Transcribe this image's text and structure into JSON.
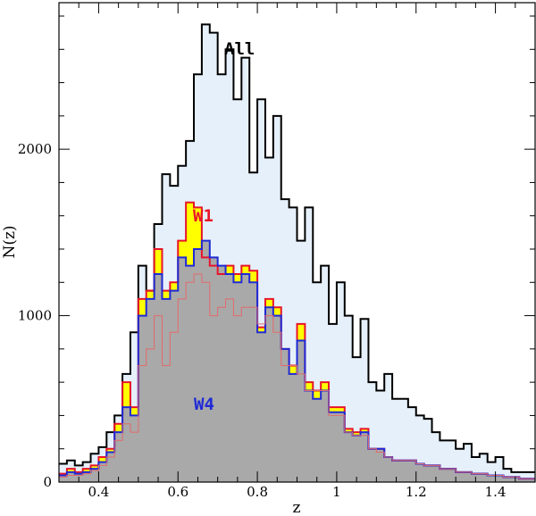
{
  "chart_data": {
    "type": "histogram",
    "xlabel": "z",
    "ylabel": "N(z)",
    "xlim": [
      0.3,
      1.5
    ],
    "ylim": [
      0,
      2800
    ],
    "x_ticks": [
      0.4,
      0.6,
      0.8,
      1,
      1.2,
      1.4
    ],
    "y_ticks": [
      0,
      1000,
      2000
    ],
    "bin_start": 0.3,
    "bin_width": 0.02,
    "grid": false,
    "annotations": [
      {
        "text": "All",
        "color": "#000000"
      },
      {
        "text": "W1",
        "color": "#e8142a"
      },
      {
        "text": "W4",
        "color": "#1f2ad6"
      }
    ],
    "series": [
      {
        "name": "All",
        "line_color": "#000000",
        "fill_color": "#e6f0fa",
        "values": [
          110,
          130,
          100,
          120,
          170,
          210,
          300,
          400,
          650,
          900,
          1300,
          1150,
          1550,
          1850,
          1780,
          1900,
          2050,
          2450,
          2750,
          2700,
          2450,
          2600,
          2300,
          2550,
          1860,
          2300,
          1950,
          2200,
          1700,
          1650,
          1450,
          1650,
          1200,
          1300,
          950,
          1200,
          1000,
          750,
          980,
          600,
          550,
          650,
          500,
          500,
          450,
          400,
          380,
          300,
          250,
          250,
          200,
          230,
          150,
          170,
          120,
          150,
          80,
          60,
          60,
          60
        ]
      },
      {
        "name": "W1",
        "line_color": "#e8142a",
        "fill_color": "#ffff00",
        "values": [
          50,
          80,
          60,
          80,
          100,
          150,
          200,
          350,
          600,
          450,
          1100,
          1150,
          1400,
          1150,
          1200,
          1450,
          1680,
          1650,
          1350,
          1300,
          1250,
          1300,
          1250,
          1300,
          1270,
          930,
          1100,
          1050,
          800,
          700,
          950,
          600,
          550,
          600,
          450,
          450,
          320,
          300,
          320,
          200,
          200,
          150,
          130,
          130,
          130,
          110,
          100,
          100,
          80,
          80,
          60,
          60,
          50,
          50,
          40,
          40,
          30,
          30,
          20,
          20
        ]
      },
      {
        "name": "W4",
        "line_color": "#1f2ad6",
        "fill_color": "#a9a9a9",
        "values": [
          40,
          60,
          50,
          60,
          80,
          120,
          180,
          300,
          450,
          400,
          1000,
          1100,
          1250,
          1100,
          1150,
          1350,
          1300,
          1400,
          1450,
          1350,
          1300,
          1250,
          1200,
          1250,
          1200,
          900,
          1050,
          1000,
          800,
          650,
          850,
          550,
          500,
          550,
          420,
          420,
          300,
          280,
          300,
          200,
          200,
          150,
          130,
          130,
          130,
          110,
          100,
          100,
          80,
          80,
          60,
          60,
          50,
          50,
          40,
          40,
          30,
          30,
          20,
          20
        ]
      },
      {
        "name": "",
        "line_color": "#e36a6a",
        "fill_color": "none",
        "values": [
          30,
          40,
          40,
          50,
          70,
          100,
          150,
          250,
          350,
          300,
          700,
          800,
          1000,
          700,
          900,
          1100,
          1200,
          1250,
          1200,
          1000,
          1050,
          1100,
          1000,
          1050,
          1050,
          950,
          1000,
          900,
          700,
          700,
          650,
          550,
          550,
          550,
          400,
          400,
          300,
          280,
          280,
          200,
          180,
          150,
          130,
          130,
          130,
          110,
          100,
          100,
          80,
          80,
          60,
          60,
          50,
          50,
          40,
          40,
          30,
          30,
          20,
          20
        ]
      }
    ]
  }
}
